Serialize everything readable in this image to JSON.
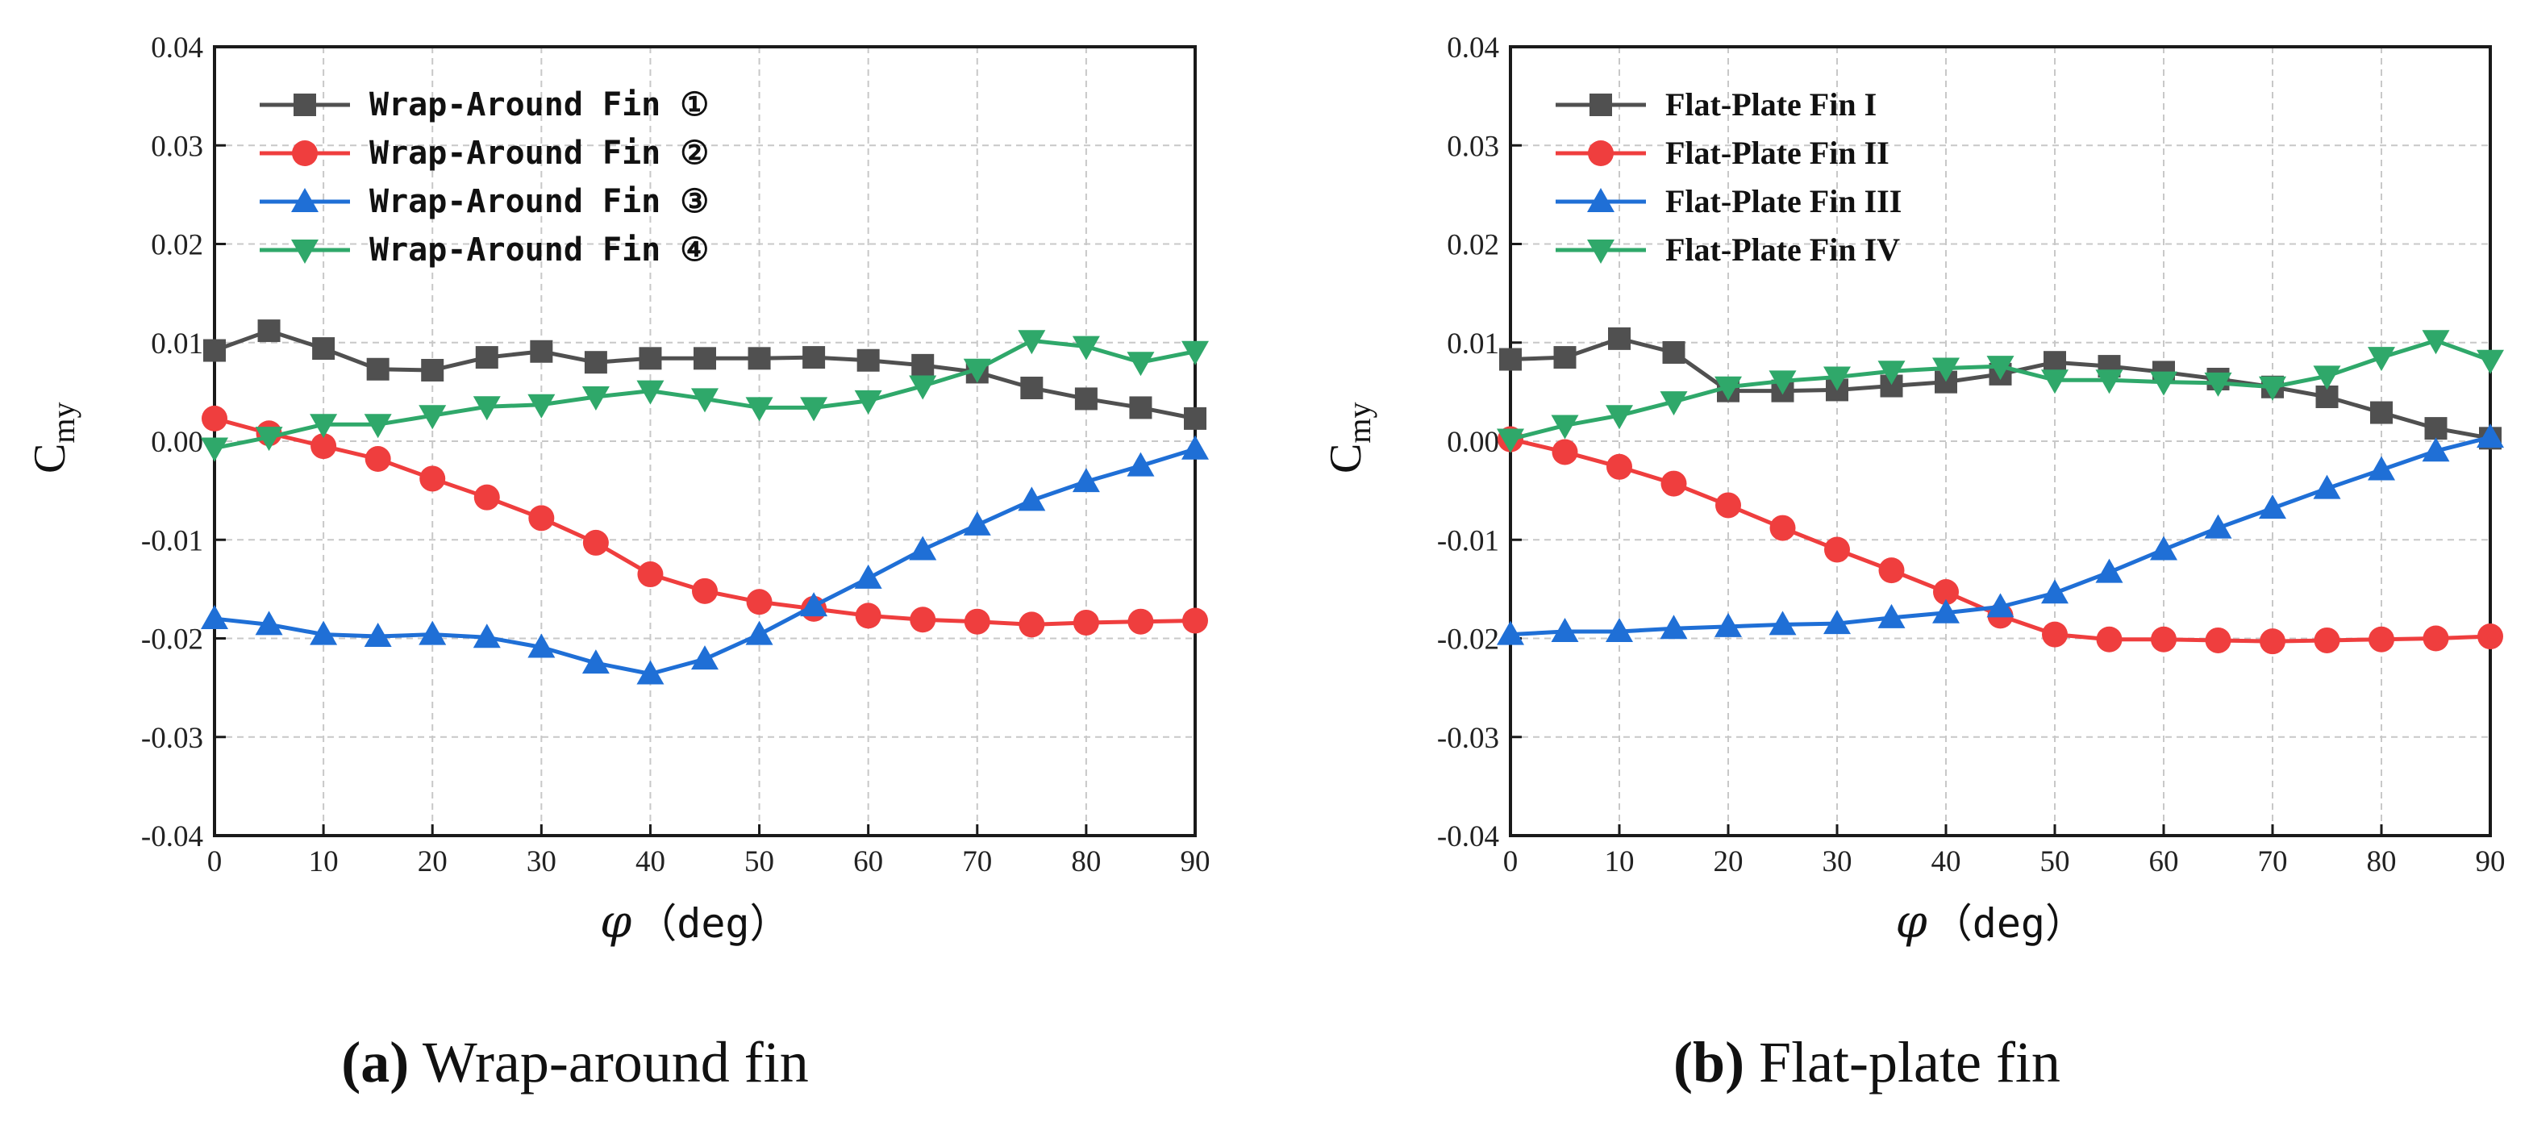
{
  "chart_data": [
    {
      "type": "line",
      "title": "",
      "xlabel_symbol": "φ",
      "xlabel_unit": "（deg）",
      "ylabel_main": "C",
      "ylabel_sub": "my",
      "xlim": [
        0,
        90
      ],
      "ylim": [
        -0.04,
        0.04
      ],
      "xticks": [
        "0",
        "10",
        "20",
        "30",
        "40",
        "50",
        "60",
        "70",
        "80",
        "90"
      ],
      "yticks": [
        "-0.04",
        "-0.03",
        "-0.02",
        "-0.01",
        "0.00",
        "0.01",
        "0.02",
        "0.03",
        "0.04"
      ],
      "grid": true,
      "legend_position": "top-left",
      "caption_letter": "(a)",
      "caption_text": " Wrap-around fin",
      "x": [
        0,
        5,
        10,
        15,
        20,
        25,
        30,
        35,
        40,
        45,
        50,
        55,
        60,
        65,
        70,
        75,
        80,
        85,
        90
      ],
      "series": [
        {
          "name": "Wrap-Around Fin ①",
          "color": "#505050",
          "marker": "square",
          "values": [
            0.0092,
            0.0112,
            0.0094,
            0.0073,
            0.0072,
            0.0085,
            0.0091,
            0.008,
            0.0084,
            0.0084,
            0.0084,
            0.0085,
            0.0082,
            0.0077,
            0.007,
            0.0054,
            0.0043,
            0.0034,
            0.0023
          ]
        },
        {
          "name": "Wrap-Around Fin ②",
          "color": "#ef3e3e",
          "marker": "circle",
          "values": [
            0.0023,
            0.0008,
            -0.0005,
            -0.0018,
            -0.0038,
            -0.0057,
            -0.0078,
            -0.0103,
            -0.0135,
            -0.0152,
            -0.0163,
            -0.017,
            -0.0177,
            -0.0181,
            -0.0183,
            -0.0186,
            -0.0184,
            -0.0183,
            -0.0182
          ]
        },
        {
          "name": "Wrap-Around Fin ③",
          "color": "#1f6fd6",
          "marker": "triangle-up",
          "values": [
            -0.018,
            -0.0186,
            -0.0196,
            -0.0198,
            -0.0196,
            -0.0199,
            -0.0209,
            -0.0225,
            -0.0236,
            -0.0221,
            -0.0196,
            -0.0167,
            -0.0139,
            -0.011,
            -0.0085,
            -0.006,
            -0.0041,
            -0.0025,
            -0.0008
          ]
        },
        {
          "name": "Wrap-Around Fin ④",
          "color": "#2fa86a",
          "marker": "triangle-down",
          "values": [
            -0.0007,
            0.0004,
            0.0017,
            0.0017,
            0.0026,
            0.0035,
            0.0037,
            0.0045,
            0.0051,
            0.0043,
            0.0034,
            0.0034,
            0.0041,
            0.0056,
            0.0073,
            0.0102,
            0.0096,
            0.008,
            0.0091
          ]
        }
      ]
    },
    {
      "type": "line",
      "title": "",
      "xlabel_symbol": "φ",
      "xlabel_unit": "（deg）",
      "ylabel_main": "C",
      "ylabel_sub": "my",
      "xlim": [
        0,
        90
      ],
      "ylim": [
        -0.04,
        0.04
      ],
      "xticks": [
        "0",
        "10",
        "20",
        "30",
        "40",
        "50",
        "60",
        "70",
        "80",
        "90"
      ],
      "yticks": [
        "-0.04",
        "-0.03",
        "-0.02",
        "-0.01",
        "0.00",
        "0.01",
        "0.02",
        "0.03",
        "0.04"
      ],
      "grid": true,
      "legend_position": "top-left",
      "caption_letter": "(b)",
      "caption_text": " Flat-plate fin",
      "x": [
        0,
        5,
        10,
        15,
        20,
        25,
        30,
        35,
        40,
        45,
        50,
        55,
        60,
        65,
        70,
        75,
        80,
        85,
        90
      ],
      "series": [
        {
          "name": "Flat-Plate Fin I",
          "color": "#505050",
          "marker": "square",
          "values": [
            0.0083,
            0.0085,
            0.0104,
            0.009,
            0.0051,
            0.0051,
            0.0052,
            0.0056,
            0.006,
            0.0068,
            0.008,
            0.0076,
            0.007,
            0.0063,
            0.0055,
            0.0045,
            0.0029,
            0.0013,
            0.0003
          ]
        },
        {
          "name": "Flat-Plate Fin II",
          "color": "#ef3e3e",
          "marker": "circle",
          "values": [
            0.0002,
            -0.0011,
            -0.0026,
            -0.0043,
            -0.0065,
            -0.0088,
            -0.011,
            -0.0131,
            -0.0153,
            -0.0177,
            -0.0196,
            -0.0201,
            -0.0201,
            -0.0202,
            -0.0203,
            -0.0202,
            -0.0201,
            -0.02,
            -0.0198
          ]
        },
        {
          "name": "Flat-Plate Fin III",
          "color": "#1f6fd6",
          "marker": "triangle-up",
          "values": [
            -0.0196,
            -0.0193,
            -0.0193,
            -0.019,
            -0.0188,
            -0.0186,
            -0.0185,
            -0.0179,
            -0.0174,
            -0.0168,
            -0.0154,
            -0.0133,
            -0.011,
            -0.0088,
            -0.0068,
            -0.0048,
            -0.0029,
            -0.001,
            0.0004
          ]
        },
        {
          "name": "Flat-Plate Fin IV",
          "color": "#2fa86a",
          "marker": "triangle-down",
          "values": [
            0.0002,
            0.0016,
            0.0026,
            0.004,
            0.0055,
            0.0061,
            0.0065,
            0.0071,
            0.0074,
            0.0076,
            0.0062,
            0.0062,
            0.006,
            0.0059,
            0.0055,
            0.0066,
            0.0085,
            0.0102,
            0.0082
          ]
        }
      ]
    }
  ]
}
